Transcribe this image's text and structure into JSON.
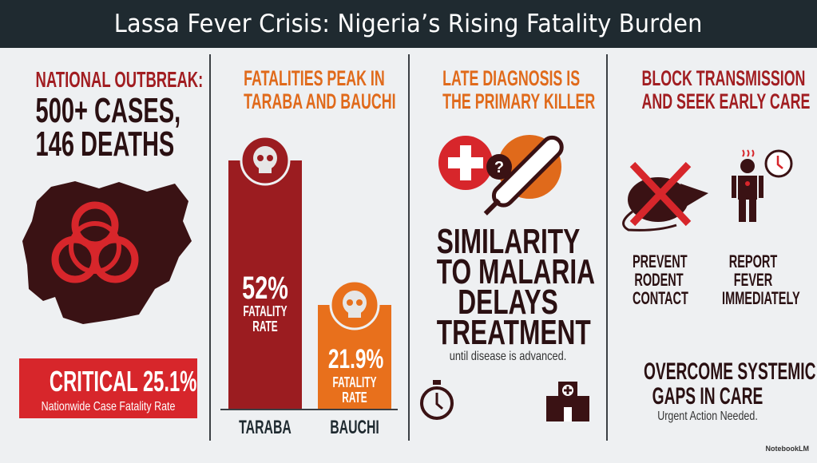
{
  "title": "Lassa Fever Crisis: Nigeria’s Rising Fatality Burden",
  "col1": {
    "heading": "NATIONAL OUTBREAK:",
    "stat_line1": "500+ CASES,",
    "stat_line2": "146 DEATHS",
    "critical_label": "CRITICAL 25.1%",
    "critical_sub": "Nationwide Case Fatality Rate"
  },
  "col2": {
    "heading_line1": "FATALITIES PEAK IN",
    "heading_line2": "TARABA AND BAUCHI",
    "bar_caption_line1": "FATALITY",
    "bar_caption_line2": "RATE"
  },
  "col3": {
    "heading_line1": "LATE DIAGNOSIS IS",
    "heading_line2": "THE PRIMARY KILLER",
    "big_line1": "SIMILARITY",
    "big_line2": "TO MALARIA",
    "big_line3": "DELAYS",
    "big_line4": "TREATMENT",
    "sub": "until disease is advanced."
  },
  "col4": {
    "heading_line1": "BLOCK TRANSMISSION",
    "heading_line2": "AND SEEK EARLY CARE",
    "action1": [
      "PREVENT",
      "RODENT",
      "CONTACT"
    ],
    "action2": [
      "REPORT",
      "FEVER",
      "IMMEDIATELY"
    ],
    "gaps_line1": "OVERCOME SYSTEMIC",
    "gaps_line2": "GAPS IN CARE",
    "gaps_sub": "Urgent Action Needed."
  },
  "watermark": "NotebookLM",
  "colors": {
    "red": "#a11d21",
    "orange": "#e06a1b",
    "dark": "#3a1214",
    "banner": "#d7262b",
    "title_bg": "#1f2a30"
  },
  "chart_data": {
    "type": "bar",
    "categories": [
      "TARABA",
      "BAUCHI"
    ],
    "values": [
      52,
      21.9
    ],
    "value_labels": [
      "52%",
      "21.9%"
    ],
    "colors": [
      "#9b1c20",
      "#e8701c"
    ]
  }
}
